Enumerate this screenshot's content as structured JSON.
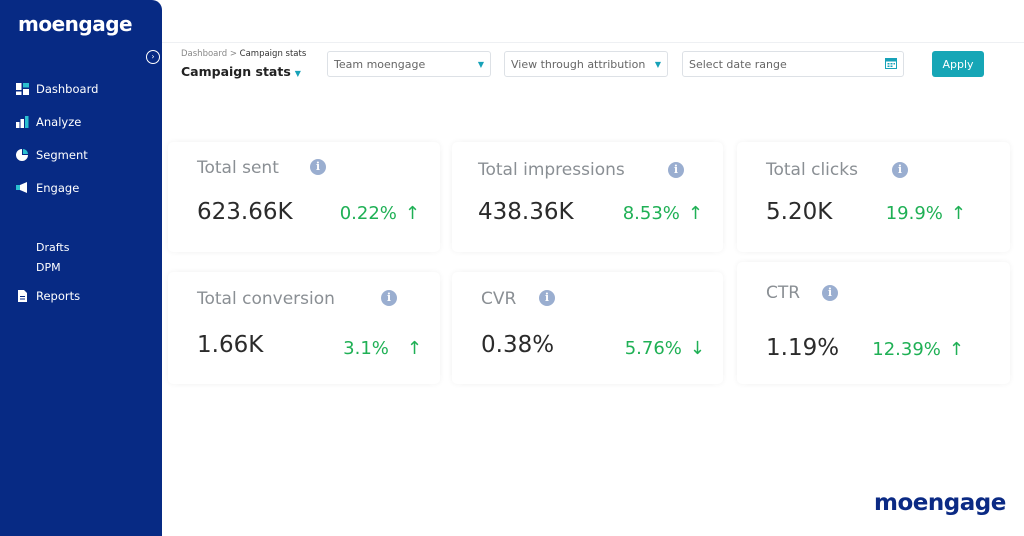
{
  "sidebar": {
    "logo": "moengage",
    "items": [
      {
        "label": "Dashboard",
        "icon": "dashboard-icon"
      },
      {
        "label": "Analyze",
        "icon": "bar-chart-icon"
      },
      {
        "label": "Segment",
        "icon": "pie-chart-icon"
      },
      {
        "label": "Engage",
        "icon": "megaphone-icon"
      }
    ],
    "subitems": [
      "Drafts",
      "DPM"
    ],
    "reports": {
      "label": "Reports",
      "icon": "document-icon"
    }
  },
  "header": {
    "breadcrumb_root": "Dashboard",
    "breadcrumb_sep": ">",
    "breadcrumb_current": "Campaign stats",
    "title": "Campaign stats",
    "team_select": "Team moengage",
    "attribution_select": "View through attribution",
    "date_placeholder": "Select date range",
    "apply": "Apply"
  },
  "colors": {
    "sidebar": "#072a84",
    "accent": "#16a6b6",
    "positive": "#1fb055"
  },
  "cards": [
    {
      "label": "Total sent",
      "value": "623.66K",
      "change": "0.22%",
      "direction": "up"
    },
    {
      "label": "Total impressions",
      "value": "438.36K",
      "change": "8.53%",
      "direction": "up"
    },
    {
      "label": "Total clicks",
      "value": "5.20K",
      "change": "19.9%",
      "direction": "up"
    },
    {
      "label": "Total conversion",
      "value": "1.66K",
      "change": "3.1%",
      "direction": "up"
    },
    {
      "label": "CVR",
      "value": "0.38%",
      "change": "5.76%",
      "direction": "down"
    },
    {
      "label": "CTR",
      "value": "1.19%",
      "change": "12.39%",
      "direction": "up"
    }
  ],
  "arrows": {
    "up": "↑",
    "down": "↓"
  },
  "footer_logo": "moengage"
}
